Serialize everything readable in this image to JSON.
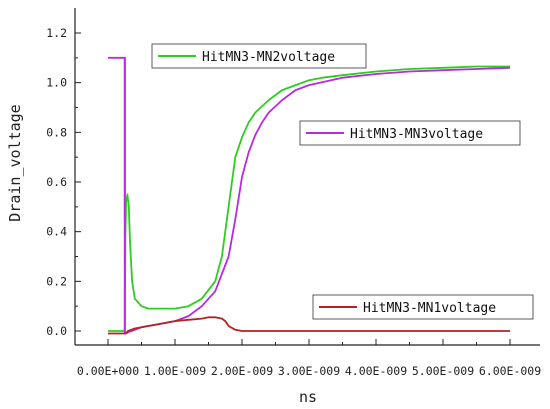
{
  "chart_data": {
    "type": "line",
    "xlabel": "ns",
    "ylabel": "Drain_voltage",
    "xlim": [
      0,
      6
    ],
    "ylim": [
      -0.05,
      1.25
    ],
    "x_tick_labels": [
      "0.00E+000",
      "1.00E-009",
      "2.00E-009",
      "3.00E-009",
      "4.00E-009",
      "5.00E-009",
      "6.00E-009"
    ],
    "x_tick_values": [
      0,
      1,
      2,
      3,
      4,
      5,
      6
    ],
    "y_tick_labels": [
      "0.0",
      "0.2",
      "0.4",
      "0.6",
      "0.8",
      "1.0",
      "1.2"
    ],
    "y_tick_values": [
      0.0,
      0.2,
      0.4,
      0.6,
      0.8,
      1.0,
      1.2
    ],
    "legend": [
      {
        "label": "HitMN3-MN2voltage",
        "color": "#2ecc1f"
      },
      {
        "label": "HitMN3-MN3voltage",
        "color": "#b829e0"
      },
      {
        "label": "HitMN3-MN1voltage",
        "color": "#b22222"
      }
    ],
    "series": [
      {
        "name": "HitMN3-MN2voltage",
        "color": "#2ecc1f",
        "x": [
          0.0,
          0.25,
          0.26,
          0.27,
          0.29,
          0.31,
          0.33,
          0.36,
          0.4,
          0.5,
          0.6,
          0.8,
          1.0,
          1.2,
          1.4,
          1.6,
          1.7,
          1.8,
          1.9,
          2.0,
          2.1,
          2.2,
          2.4,
          2.6,
          2.8,
          3.0,
          3.2,
          3.5,
          4.0,
          4.5,
          5.0,
          5.5,
          6.0
        ],
        "y": [
          0.0,
          0.0,
          0.38,
          0.52,
          0.55,
          0.5,
          0.35,
          0.2,
          0.13,
          0.1,
          0.09,
          0.09,
          0.09,
          0.1,
          0.13,
          0.2,
          0.3,
          0.5,
          0.7,
          0.78,
          0.84,
          0.88,
          0.93,
          0.97,
          0.99,
          1.01,
          1.02,
          1.03,
          1.045,
          1.055,
          1.06,
          1.065,
          1.065
        ]
      },
      {
        "name": "HitMN3-MN3voltage",
        "color": "#b829e0",
        "x": [
          0.25,
          0.251,
          0.27,
          0.3,
          0.35,
          0.4,
          0.5,
          0.6,
          0.8,
          1.0,
          1.2,
          1.4,
          1.6,
          1.8,
          1.9,
          2.0,
          2.1,
          2.2,
          2.3,
          2.4,
          2.6,
          2.8,
          3.0,
          3.5,
          4.0,
          4.5,
          5.0,
          5.5,
          6.0
        ],
        "y": [
          1.1,
          -0.01,
          -0.01,
          -0.005,
          0.0,
          0.005,
          0.015,
          0.02,
          0.03,
          0.04,
          0.06,
          0.1,
          0.16,
          0.3,
          0.45,
          0.62,
          0.72,
          0.79,
          0.84,
          0.88,
          0.93,
          0.97,
          0.99,
          1.02,
          1.035,
          1.045,
          1.05,
          1.055,
          1.06
        ]
      },
      {
        "name": "HitMN3-MN1voltage",
        "color": "#b22222",
        "x": [
          0.0,
          0.25,
          0.26,
          0.3,
          0.4,
          0.6,
          0.8,
          1.0,
          1.2,
          1.4,
          1.5,
          1.6,
          1.7,
          1.75,
          1.8,
          1.9,
          2.0,
          2.5,
          3.0,
          4.0,
          5.0,
          6.0
        ],
        "y": [
          -0.01,
          -0.01,
          -0.01,
          0.0,
          0.01,
          0.02,
          0.03,
          0.04,
          0.045,
          0.05,
          0.055,
          0.055,
          0.05,
          0.04,
          0.02,
          0.005,
          0.0,
          0.0,
          0.0,
          0.0,
          0.0,
          0.0
        ]
      }
    ],
    "extra_segments": [
      {
        "color": "#b829e0",
        "x": [
          0.0,
          0.25,
          0.25
        ],
        "y": [
          1.1,
          1.1,
          0.0
        ]
      },
      {
        "color": "#b829e0",
        "x": [
          0.25,
          0.25
        ],
        "y": [
          1.1,
          0.45
        ]
      }
    ]
  }
}
